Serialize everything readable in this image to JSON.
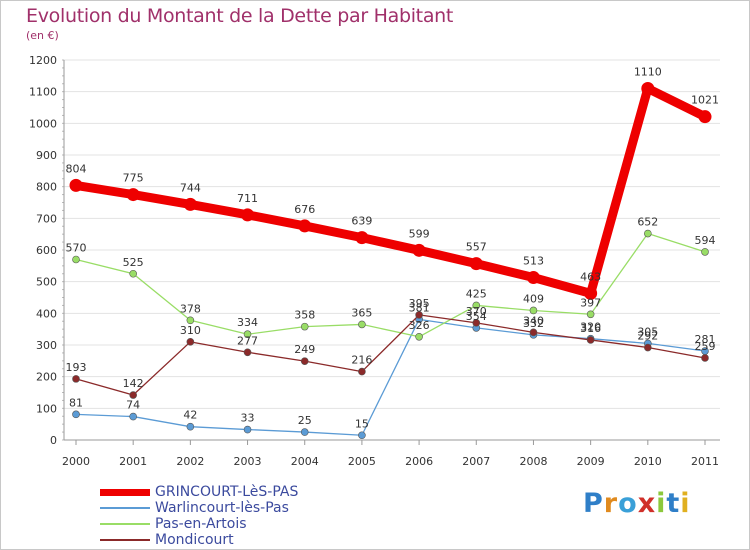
{
  "title": "Evolution du Montant de la Dette par Habitant",
  "subtitle": "(en €)",
  "logo": {
    "text": "Proxiti",
    "letters": [
      "P",
      "r",
      "o",
      "x",
      "i",
      "t",
      "i"
    ],
    "colors": [
      "#2f7fc8",
      "#e08a1e",
      "#3aa0d8",
      "#d0302a",
      "#8cc83c",
      "#2f7fc8",
      "#e0b020"
    ]
  },
  "chart_data": {
    "type": "line",
    "title": "Evolution du Montant de la Dette par Habitant",
    "subtitle": "(en €)",
    "x": [
      "2000",
      "2001",
      "2002",
      "2003",
      "2004",
      "2005",
      "2006",
      "2007",
      "2008",
      "2009",
      "2010",
      "2011"
    ],
    "ylim": [
      0,
      1200
    ],
    "yticks": [
      0,
      100,
      200,
      300,
      400,
      500,
      600,
      700,
      800,
      900,
      1000,
      1100,
      1200
    ],
    "grid": true,
    "legend_position": "bottom-left",
    "series": [
      {
        "name": "GRINCOURT-LèS-PAS",
        "color": "#ee0000",
        "emphasis": true,
        "values": [
          804,
          775,
          744,
          711,
          676,
          639,
          599,
          557,
          513,
          463,
          1110,
          1021
        ]
      },
      {
        "name": "Warlincourt-lès-Pas",
        "color": "#5b9bd5",
        "emphasis": false,
        "values": [
          81,
          74,
          42,
          33,
          25,
          15,
          381,
          354,
          332,
          320,
          305,
          281
        ]
      },
      {
        "name": "Pas-en-Artois",
        "color": "#99dd66",
        "emphasis": false,
        "values": [
          570,
          525,
          378,
          334,
          358,
          365,
          326,
          425,
          409,
          397,
          652,
          594
        ]
      },
      {
        "name": "Mondicourt",
        "color": "#8b2a2a",
        "emphasis": false,
        "values": [
          193,
          142,
          310,
          277,
          249,
          216,
          395,
          370,
          340,
          316,
          292,
          259
        ]
      }
    ]
  }
}
